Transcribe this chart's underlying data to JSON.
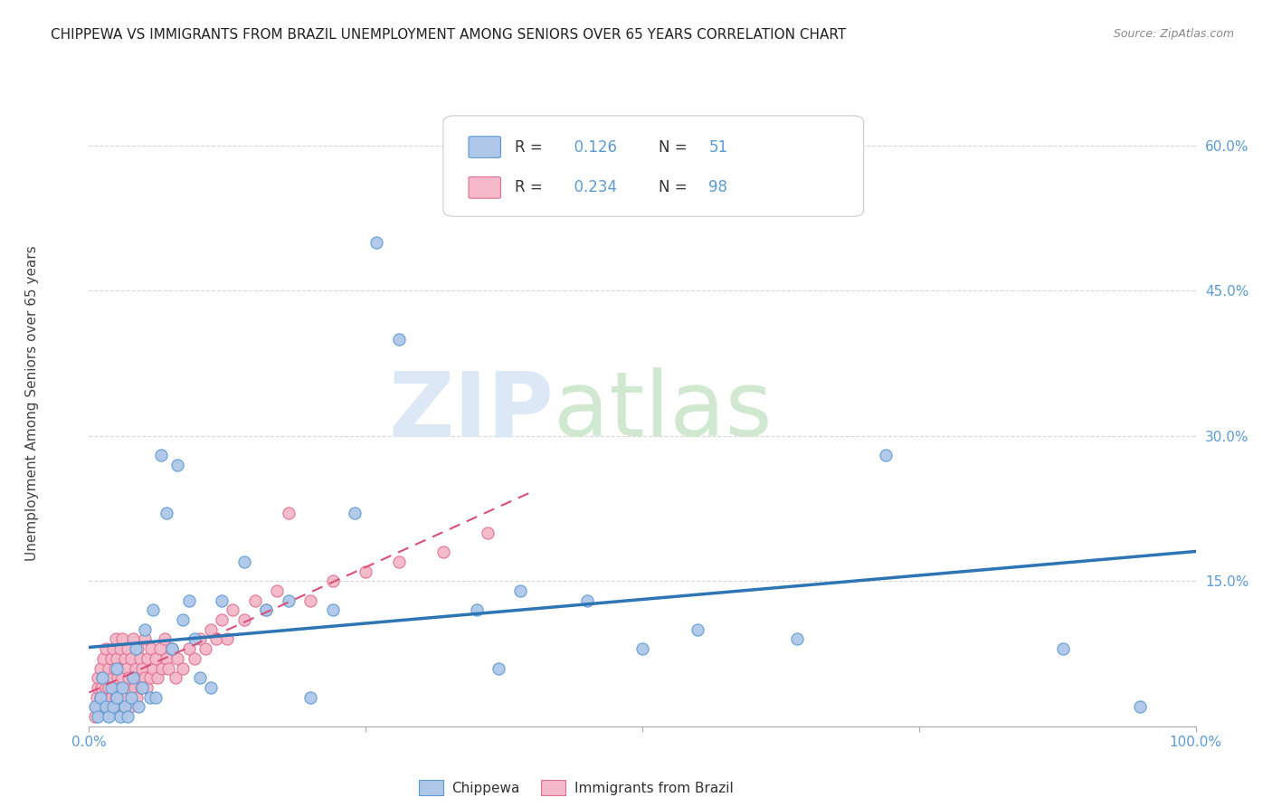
{
  "title": "CHIPPEWA VS IMMIGRANTS FROM BRAZIL UNEMPLOYMENT AMONG SENIORS OVER 65 YEARS CORRELATION CHART",
  "source": "Source: ZipAtlas.com",
  "ylabel": "Unemployment Among Seniors over 65 years",
  "xlim": [
    0,
    1.0
  ],
  "ylim": [
    0,
    0.65
  ],
  "chippewa_R": 0.126,
  "chippewa_N": 51,
  "brazil_R": 0.234,
  "brazil_N": 98,
  "chippewa_color": "#aec6e8",
  "chippewa_edge_color": "#5b9bd5",
  "chippewa_line_color": "#2e75b6",
  "brazil_color": "#f4b8c8",
  "brazil_edge_color": "#e07090",
  "brazil_line_color": "#d94f7a",
  "tick_color": "#5b9bd5",
  "grid_color": "#cccccc",
  "watermark_zip_color": "#dce8f5",
  "watermark_atlas_color": "#d0e8d0",
  "chippewa_x": [
    0.005,
    0.008,
    0.01,
    0.012,
    0.015,
    0.018,
    0.02,
    0.022,
    0.025,
    0.025,
    0.028,
    0.03,
    0.032,
    0.035,
    0.038,
    0.04,
    0.042,
    0.045,
    0.048,
    0.05,
    0.055,
    0.058,
    0.06,
    0.065,
    0.07,
    0.075,
    0.08,
    0.085,
    0.09,
    0.095,
    0.1,
    0.11,
    0.12,
    0.14,
    0.16,
    0.18,
    0.2,
    0.22,
    0.24,
    0.26,
    0.28,
    0.35,
    0.37,
    0.39,
    0.45,
    0.5,
    0.55,
    0.64,
    0.72,
    0.88,
    0.95
  ],
  "chippewa_y": [
    0.02,
    0.01,
    0.03,
    0.05,
    0.02,
    0.01,
    0.04,
    0.02,
    0.03,
    0.06,
    0.01,
    0.04,
    0.02,
    0.01,
    0.03,
    0.05,
    0.08,
    0.02,
    0.04,
    0.1,
    0.03,
    0.12,
    0.03,
    0.28,
    0.22,
    0.08,
    0.27,
    0.11,
    0.13,
    0.09,
    0.05,
    0.04,
    0.13,
    0.17,
    0.12,
    0.13,
    0.03,
    0.12,
    0.22,
    0.5,
    0.4,
    0.12,
    0.06,
    0.14,
    0.13,
    0.08,
    0.1,
    0.09,
    0.28,
    0.08,
    0.02
  ],
  "brazil_x": [
    0.005,
    0.006,
    0.007,
    0.008,
    0.008,
    0.009,
    0.01,
    0.01,
    0.011,
    0.012,
    0.013,
    0.013,
    0.014,
    0.015,
    0.015,
    0.015,
    0.016,
    0.017,
    0.018,
    0.018,
    0.019,
    0.02,
    0.02,
    0.021,
    0.022,
    0.022,
    0.022,
    0.023,
    0.024,
    0.024,
    0.025,
    0.025,
    0.026,
    0.026,
    0.027,
    0.028,
    0.028,
    0.029,
    0.03,
    0.03,
    0.031,
    0.032,
    0.033,
    0.034,
    0.035,
    0.035,
    0.036,
    0.037,
    0.038,
    0.039,
    0.04,
    0.04,
    0.041,
    0.042,
    0.043,
    0.044,
    0.045,
    0.046,
    0.047,
    0.048,
    0.05,
    0.05,
    0.052,
    0.053,
    0.055,
    0.056,
    0.058,
    0.06,
    0.062,
    0.064,
    0.066,
    0.068,
    0.07,
    0.072,
    0.075,
    0.078,
    0.08,
    0.085,
    0.09,
    0.095,
    0.1,
    0.105,
    0.11,
    0.115,
    0.12,
    0.125,
    0.13,
    0.14,
    0.15,
    0.16,
    0.17,
    0.18,
    0.2,
    0.22,
    0.25,
    0.28,
    0.32,
    0.36
  ],
  "brazil_y": [
    0.01,
    0.02,
    0.03,
    0.04,
    0.05,
    0.02,
    0.03,
    0.06,
    0.04,
    0.05,
    0.02,
    0.07,
    0.03,
    0.04,
    0.08,
    0.02,
    0.05,
    0.03,
    0.04,
    0.06,
    0.02,
    0.03,
    0.07,
    0.04,
    0.05,
    0.08,
    0.02,
    0.06,
    0.03,
    0.09,
    0.04,
    0.07,
    0.05,
    0.02,
    0.06,
    0.08,
    0.03,
    0.04,
    0.05,
    0.09,
    0.02,
    0.07,
    0.03,
    0.06,
    0.04,
    0.08,
    0.05,
    0.02,
    0.07,
    0.03,
    0.05,
    0.09,
    0.04,
    0.06,
    0.03,
    0.08,
    0.05,
    0.07,
    0.04,
    0.06,
    0.05,
    0.09,
    0.04,
    0.07,
    0.05,
    0.08,
    0.06,
    0.07,
    0.05,
    0.08,
    0.06,
    0.09,
    0.07,
    0.06,
    0.08,
    0.05,
    0.07,
    0.06,
    0.08,
    0.07,
    0.09,
    0.08,
    0.1,
    0.09,
    0.11,
    0.09,
    0.12,
    0.11,
    0.13,
    0.12,
    0.14,
    0.22,
    0.13,
    0.15,
    0.16,
    0.17,
    0.18,
    0.2
  ]
}
